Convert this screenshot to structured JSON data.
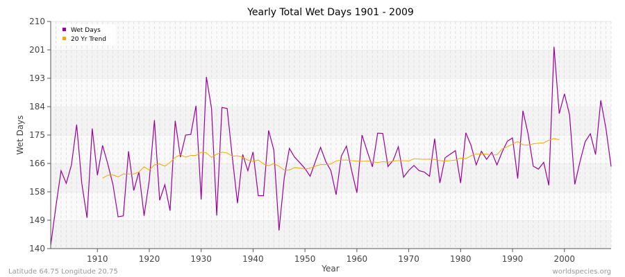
{
  "chart_data": {
    "type": "line",
    "title": "Yearly Total Wet Days 1901 - 2009",
    "xlabel": "Year",
    "ylabel": "Wet Days",
    "xlim": [
      1901,
      2009
    ],
    "ylim": [
      140,
      210
    ],
    "x_ticks": [
      1910,
      1920,
      1930,
      1940,
      1950,
      1960,
      1970,
      1980,
      1990,
      2000
    ],
    "y_ticks": [
      140,
      149,
      158,
      166,
      175,
      184,
      193,
      201,
      210
    ],
    "grid": true,
    "legend_placement": "top-left",
    "series": [
      {
        "name": "Wet Days",
        "color": "#990099",
        "x_start": 1901,
        "values": [
          141,
          153,
          164.0,
          160.1,
          165.8,
          178.2,
          160.1,
          149.5,
          177.0,
          162.6,
          171.8,
          166.1,
          159.7,
          149.8,
          150.1,
          170.0,
          157.9,
          163.6,
          150.1,
          161.1,
          179.6,
          154.9,
          159.7,
          151.7,
          179.4,
          168.2,
          175.0,
          175.2,
          184.0,
          155.1,
          192.9,
          183.2,
          150.2,
          183.5,
          183.2,
          168.2,
          154.0,
          169.0,
          164.0,
          169.8,
          156.3,
          156.3,
          176.4,
          170.4,
          145.6,
          161.8,
          170.9,
          168.2,
          166.5,
          164.7,
          162.3,
          166.8,
          171.2,
          166.9,
          164.0,
          156.6,
          168.4,
          171.6,
          164.0,
          157.2,
          175.0,
          170.0,
          165.2,
          175.6,
          175.5,
          165.3,
          167.2,
          171.4,
          162.0,
          164.1,
          165.6,
          164.0,
          163.6,
          162.3,
          173.9,
          160.2,
          168.0,
          169.1,
          170.2,
          160.2,
          175.7,
          171.8,
          165.8,
          170.0,
          167.5,
          169.7,
          165.8,
          169.8,
          173.1,
          174.1,
          161.6,
          182.5,
          175.4,
          165.4,
          164.5,
          166.6,
          159.5,
          202.2,
          181.6,
          187.7,
          181.2,
          159.8,
          166.8,
          172.9,
          175.4,
          169.0,
          185.7,
          177.1,
          165.3
        ]
      },
      {
        "name": "20 Yr Trend",
        "color": "#ffa500",
        "x_start": 1911,
        "values": [
          161.7,
          162.6,
          162.7,
          162.1,
          163.0,
          163.0,
          163.0,
          163.6,
          165.2,
          164.2,
          165.8,
          166.1,
          165.4,
          166.6,
          168.1,
          168.9,
          168.2,
          168.7,
          168.7,
          169.7,
          169.5,
          168.1,
          169.1,
          169.7,
          169.5,
          168.5,
          168.6,
          168.2,
          167.3,
          166.9,
          167.3,
          166.1,
          165.5,
          166.2,
          165.4,
          164.2,
          164.2,
          165.0,
          164.8,
          164.5,
          164.8,
          165.4,
          165.9,
          165.9,
          166.1,
          167.0,
          167.3,
          167.3,
          167.1,
          167.0,
          166.9,
          167.0,
          166.8,
          166.5,
          166.8,
          166.6,
          167.0,
          167.1,
          167.1,
          167.0,
          167.7,
          167.6,
          167.5,
          167.6,
          167.5,
          167.1,
          167.0,
          167.1,
          167.3,
          167.9,
          167.7,
          168.6,
          169.2,
          169.2,
          169.1,
          168.9,
          168.9,
          170.7,
          171.4,
          172.2,
          173.0,
          172.0,
          171.9,
          172.3,
          172.5,
          172.6,
          173.4,
          173.9,
          173.6
        ]
      }
    ]
  },
  "footer": {
    "location": "Latitude 64.75 Longitude 20.75",
    "source": "worldspecies.org"
  }
}
